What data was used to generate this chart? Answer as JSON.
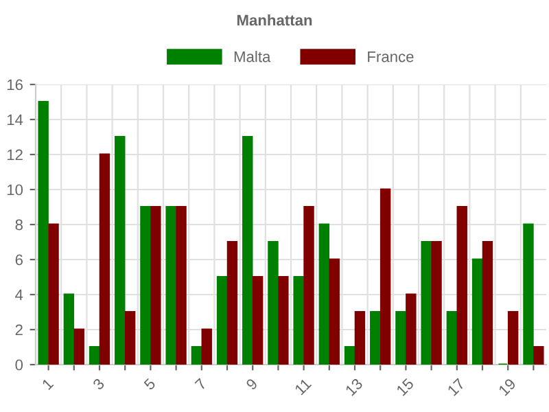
{
  "chart_data": {
    "type": "bar",
    "title": "Manhattan",
    "categories": [
      "1",
      null,
      "3",
      null,
      "5",
      null,
      "7",
      null,
      "9",
      null,
      "11",
      null,
      "13",
      null,
      "15",
      null,
      "17",
      null,
      "19",
      null
    ],
    "series": [
      {
        "name": "Malta",
        "color": "#008000",
        "values": [
          15,
          4,
          1,
          13,
          9,
          9,
          1,
          5,
          13,
          7,
          5,
          8,
          1,
          3,
          3,
          7,
          3,
          6,
          0,
          8
        ]
      },
      {
        "name": "France",
        "color": "#800000",
        "values": [
          8,
          2,
          12,
          3,
          9,
          9,
          2,
          7,
          5,
          5,
          9,
          6,
          3,
          10,
          4,
          7,
          9,
          7,
          3,
          1
        ]
      }
    ],
    "ylim": [
      0,
      16
    ],
    "yticks": [
      0,
      2,
      4,
      6,
      8,
      10,
      12,
      14,
      16
    ],
    "grid": true,
    "legend": "top"
  }
}
